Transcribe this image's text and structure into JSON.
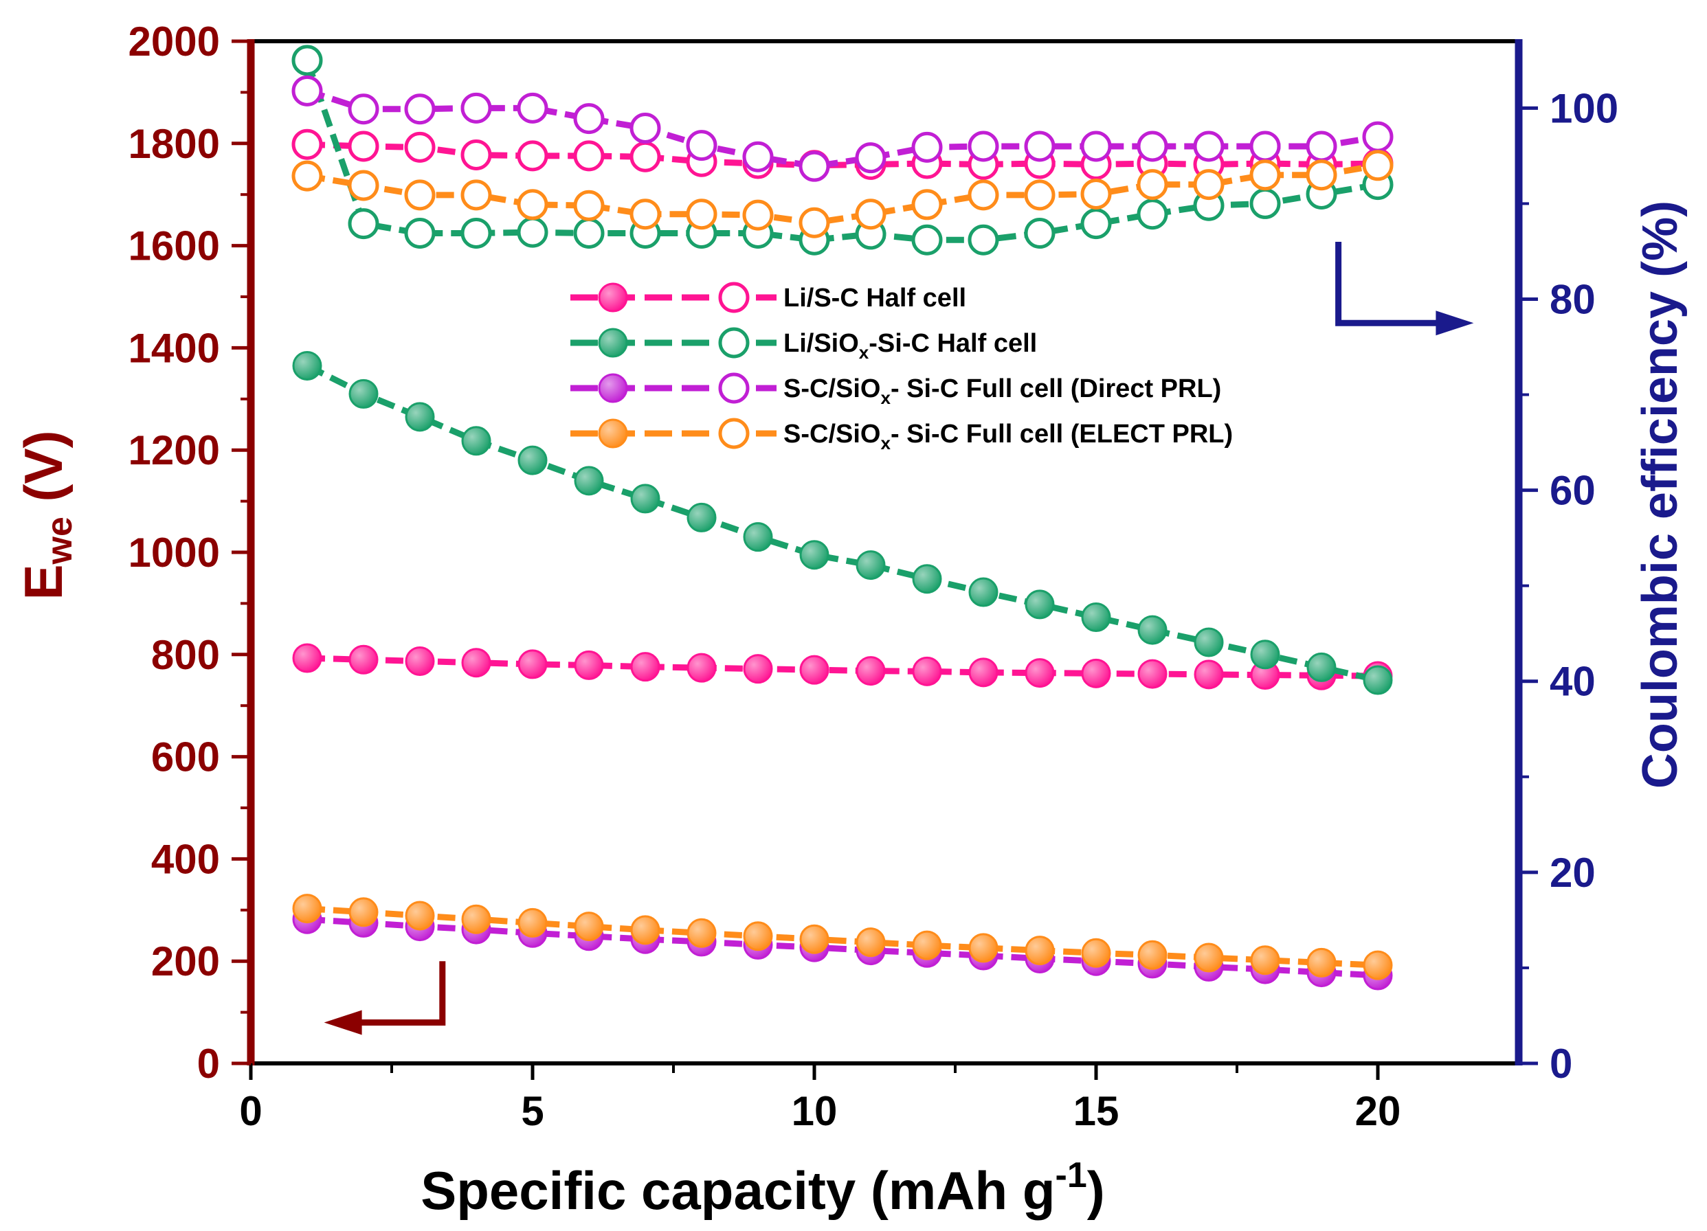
{
  "chart_data": {
    "type": "line",
    "xlabel": "Specific capacity (mAh g-1)",
    "xlabel_main": "Specific capacity (mAh g",
    "xlabel_sup": "-1",
    "xlabel_end": ")",
    "ylabel_left": "Ewe (V)",
    "ylabel_left_main": "E",
    "ylabel_left_sub": "we",
    "ylabel_left_end": " (V)",
    "ylabel_right": "Coulombic efficiency (%)",
    "xlim": [
      0,
      22.5
    ],
    "ylim_left": [
      0,
      2000
    ],
    "ylim_right": [
      0,
      107
    ],
    "x_ticks": [
      0,
      5,
      10,
      15,
      20
    ],
    "y_left_ticks": [
      0,
      200,
      400,
      600,
      800,
      1000,
      1200,
      1400,
      1600,
      1800,
      2000
    ],
    "y_right_ticks": [
      0,
      20,
      40,
      60,
      80,
      100
    ],
    "x": [
      1,
      2,
      3,
      4,
      5,
      6,
      7,
      8,
      9,
      10,
      11,
      12,
      13,
      14,
      15,
      16,
      17,
      18,
      19,
      20
    ],
    "series": [
      {
        "name": "Li/S-C Half cell",
        "legend_parts": [
          "Li/S-C Half cell"
        ],
        "color": "#ff1493",
        "capacity": [
          793,
          790,
          787,
          784,
          781,
          779,
          776,
          774,
          772,
          770,
          768,
          767,
          765,
          764,
          763,
          762,
          761,
          760,
          759,
          758
        ],
        "coulombic_efficiency": [
          96.2,
          96.0,
          95.9,
          95.1,
          95.0,
          95.0,
          94.9,
          94.4,
          94.2,
          94.0,
          94.1,
          94.2,
          94.1,
          94.2,
          94.1,
          94.2,
          94.1,
          94.2,
          94.1,
          94.2
        ]
      },
      {
        "name": "Li/SiOx-Si-C Half cell",
        "legend_parts": [
          "Li/SiO",
          "x",
          "-Si-C Half cell"
        ],
        "color": "#1aa06a",
        "capacity": [
          1365,
          1310,
          1265,
          1218,
          1180,
          1140,
          1105,
          1068,
          1030,
          995,
          975,
          948,
          922,
          898,
          873,
          848,
          824,
          800,
          775,
          750
        ],
        "coulombic_efficiency": [
          105.0,
          87.9,
          86.9,
          86.9,
          87.0,
          86.9,
          86.9,
          86.9,
          86.9,
          86.2,
          86.8,
          86.2,
          86.2,
          86.9,
          87.9,
          88.9,
          89.8,
          90.0,
          91.0,
          92.0
        ]
      },
      {
        "name": "S-C/SiOx- Si-C Full cell (Direct PRL)",
        "legend_parts": [
          "S-C/SiO",
          "x",
          "- Si-C Full cell (Direct PRL)"
        ],
        "color": "#c11fd4",
        "capacity": [
          282,
          275,
          268,
          262,
          255,
          249,
          243,
          238,
          232,
          227,
          221,
          216,
          211,
          205,
          200,
          195,
          189,
          184,
          178,
          172
        ],
        "coulombic_efficiency": [
          101.8,
          99.9,
          99.9,
          100.0,
          100.0,
          98.9,
          97.9,
          96.1,
          94.9,
          93.9,
          94.8,
          95.9,
          96.0,
          96.0,
          96.0,
          96.0,
          96.0,
          96.0,
          96.0,
          97.0
        ]
      },
      {
        "name": "S-C/SiOx- Si-C Full cell (ELECT PRL)",
        "legend_parts": [
          "S-C/SiO",
          "x",
          "- Si-C Full cell (ELECT PRL)"
        ],
        "color": "#ff8c1a",
        "capacity": [
          303,
          296,
          289,
          282,
          275,
          268,
          261,
          255,
          249,
          243,
          237,
          231,
          226,
          221,
          216,
          212,
          207,
          202,
          197,
          192
        ],
        "coulombic_efficiency": [
          92.9,
          91.9,
          90.9,
          90.9,
          89.9,
          89.8,
          88.9,
          88.9,
          88.8,
          88.0,
          88.9,
          89.9,
          90.9,
          90.9,
          91.0,
          92.0,
          92.0,
          93.0,
          93.0,
          94.0
        ]
      }
    ],
    "legend_position": "center"
  }
}
